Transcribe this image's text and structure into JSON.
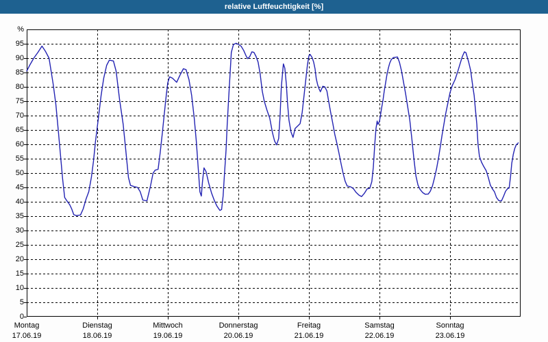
{
  "window": {
    "title": "relative Luftfeuchtigkeit [%]"
  },
  "colors": {
    "titlebar": "#1e6190",
    "window_border": "#1e6190",
    "plot_background": "#ffffff",
    "grid": "#000000",
    "line": "#2222b2",
    "label_text": "#000000"
  },
  "chart_data": {
    "type": "line",
    "title": "relative Luftfeuchtigkeit [%]",
    "ylabel": "%",
    "y_unit": "%",
    "ylim": [
      0,
      100
    ],
    "ytick_step": 5,
    "ytick_labels": [
      "0",
      "5",
      "10",
      "15",
      "20",
      "25",
      "30",
      "35",
      "40",
      "45",
      "50",
      "55",
      "60",
      "65",
      "70",
      "75",
      "80",
      "85",
      "90",
      "95"
    ],
    "grid": "dashed",
    "legend": "none",
    "x_span_hours": 168,
    "days": [
      {
        "name": "Montag",
        "date": "17.06.19"
      },
      {
        "name": "Dienstag",
        "date": "18.06.19"
      },
      {
        "name": "Mittwoch",
        "date": "19.06.19"
      },
      {
        "name": "Donnerstag",
        "date": "20.06.19"
      },
      {
        "name": "Freitag",
        "date": "21.06.19"
      },
      {
        "name": "Samstag",
        "date": "22.06.19"
      },
      {
        "name": "Sonntag",
        "date": "23.06.19"
      }
    ],
    "series": [
      {
        "name": "relative Luftfeuchtigkeit",
        "unit": "%",
        "color": "#2222b2",
        "points": [
          [
            0,
            85.5
          ],
          [
            1,
            87.5
          ],
          [
            2.4,
            90
          ],
          [
            3.8,
            92
          ],
          [
            5.2,
            94.2
          ],
          [
            6.4,
            92.3
          ],
          [
            7.6,
            90
          ],
          [
            9,
            81
          ],
          [
            9.9,
            74
          ],
          [
            10.8,
            64
          ],
          [
            11.5,
            56
          ],
          [
            12.2,
            48
          ],
          [
            12.9,
            41.5
          ],
          [
            13.6,
            40.4
          ],
          [
            14.6,
            39
          ],
          [
            15.3,
            37.5
          ],
          [
            16,
            35.5
          ],
          [
            16.9,
            35.2
          ],
          [
            18.3,
            35.4
          ],
          [
            19.2,
            37.5
          ],
          [
            20.2,
            41
          ],
          [
            21.1,
            43.5
          ],
          [
            22,
            48.5
          ],
          [
            22.7,
            54
          ],
          [
            23.4,
            61
          ],
          [
            24,
            66
          ],
          [
            24.6,
            71
          ],
          [
            25.3,
            77
          ],
          [
            26.2,
            83
          ],
          [
            27.2,
            87.5
          ],
          [
            28.1,
            89.3
          ],
          [
            29.5,
            89
          ],
          [
            30.4,
            85.5
          ],
          [
            31.6,
            75.5
          ],
          [
            32.8,
            67
          ],
          [
            33.7,
            58
          ],
          [
            34.6,
            48.5
          ],
          [
            35.3,
            45.7
          ],
          [
            36.5,
            45.3
          ],
          [
            37.7,
            45
          ],
          [
            38.6,
            43.5
          ],
          [
            39.5,
            40.6
          ],
          [
            40.9,
            40.3
          ],
          [
            42.1,
            45.5
          ],
          [
            43,
            50
          ],
          [
            43.7,
            51
          ],
          [
            44.7,
            51.3
          ],
          [
            45.4,
            57
          ],
          [
            46.1,
            63.5
          ],
          [
            46.8,
            70.5
          ],
          [
            47.5,
            77.5
          ],
          [
            48,
            81.5
          ],
          [
            48.6,
            83.5
          ],
          [
            49.6,
            83
          ],
          [
            51,
            81.6
          ],
          [
            52.1,
            84
          ],
          [
            53.3,
            86.3
          ],
          [
            54.2,
            86
          ],
          [
            55.2,
            82.5
          ],
          [
            56.1,
            77
          ],
          [
            57,
            69
          ],
          [
            57.7,
            61
          ],
          [
            58.4,
            51
          ],
          [
            58.9,
            43.5
          ],
          [
            59.4,
            42
          ],
          [
            59.8,
            47
          ],
          [
            60.3,
            51.8
          ],
          [
            61,
            50.5
          ],
          [
            61.9,
            46.5
          ],
          [
            62.9,
            43
          ],
          [
            63.8,
            40.5
          ],
          [
            64.7,
            38.5
          ],
          [
            65.7,
            37
          ],
          [
            66.3,
            37.3
          ],
          [
            66.8,
            42
          ],
          [
            67.3,
            50
          ],
          [
            67.8,
            58
          ],
          [
            68.2,
            67
          ],
          [
            68.7,
            76
          ],
          [
            69.2,
            85
          ],
          [
            69.6,
            92
          ],
          [
            70.3,
            94.7
          ],
          [
            71.2,
            95.2
          ],
          [
            72,
            94.8
          ],
          [
            72.9,
            94.2
          ],
          [
            73.8,
            92.7
          ],
          [
            74.7,
            90.6
          ],
          [
            75.2,
            89.8
          ],
          [
            75.9,
            90.6
          ],
          [
            76.6,
            92.2
          ],
          [
            77.3,
            92
          ],
          [
            78,
            90.6
          ],
          [
            78.7,
            88.6
          ],
          [
            79.4,
            84.5
          ],
          [
            80.1,
            78.6
          ],
          [
            80.8,
            75
          ],
          [
            81.7,
            72
          ],
          [
            82.7,
            69
          ],
          [
            83.6,
            64
          ],
          [
            84.3,
            61.2
          ],
          [
            85,
            59.8
          ],
          [
            85.7,
            62
          ],
          [
            86.2,
            70
          ],
          [
            86.6,
            80
          ],
          [
            87.3,
            88
          ],
          [
            87.8,
            86.5
          ],
          [
            88.3,
            81
          ],
          [
            88.7,
            74.5
          ],
          [
            89.2,
            68.5
          ],
          [
            89.9,
            64.3
          ],
          [
            90.6,
            62.4
          ],
          [
            91.3,
            65.5
          ],
          [
            92.2,
            66.4
          ],
          [
            93,
            67.2
          ],
          [
            93.7,
            71
          ],
          [
            94.4,
            77.5
          ],
          [
            95.1,
            84
          ],
          [
            95.5,
            87.8
          ],
          [
            96,
            90.8
          ],
          [
            96.4,
            91.3
          ],
          [
            97.1,
            90.2
          ],
          [
            97.6,
            88.6
          ],
          [
            98.1,
            86.2
          ],
          [
            98.5,
            82.8
          ],
          [
            99,
            80.6
          ],
          [
            99.5,
            79.2
          ],
          [
            99.9,
            78.3
          ],
          [
            100.7,
            80.2
          ],
          [
            101.4,
            80
          ],
          [
            102.1,
            78.6
          ],
          [
            102.7,
            75
          ],
          [
            103.4,
            71
          ],
          [
            104.1,
            67.3
          ],
          [
            104.8,
            63.4
          ],
          [
            105.5,
            60.3
          ],
          [
            106.2,
            57
          ],
          [
            106.9,
            53.4
          ],
          [
            107.6,
            50
          ],
          [
            108.3,
            47.2
          ],
          [
            109,
            45.5
          ],
          [
            110.2,
            45.2
          ],
          [
            111.1,
            44.6
          ],
          [
            112,
            43.3
          ],
          [
            113,
            42.3
          ],
          [
            113.9,
            41.8
          ],
          [
            114.9,
            43
          ],
          [
            115.8,
            44.5
          ],
          [
            116.7,
            44.7
          ],
          [
            117.4,
            47
          ],
          [
            117.9,
            52
          ],
          [
            118.4,
            60
          ],
          [
            118.8,
            65.5
          ],
          [
            119.2,
            68.1
          ],
          [
            119.5,
            66.9
          ],
          [
            120,
            68
          ],
          [
            120.7,
            72.5
          ],
          [
            121.2,
            75.5
          ],
          [
            121.6,
            78.5
          ],
          [
            122.1,
            81.5
          ],
          [
            122.5,
            84
          ],
          [
            123,
            86.5
          ],
          [
            123.5,
            88.3
          ],
          [
            124,
            89.5
          ],
          [
            124.7,
            90.2
          ],
          [
            126.1,
            90.4
          ],
          [
            126.8,
            88.5
          ],
          [
            127.5,
            85.5
          ],
          [
            128.2,
            81.5
          ],
          [
            128.9,
            77.5
          ],
          [
            129.6,
            73
          ],
          [
            130.3,
            68.5
          ],
          [
            131,
            62
          ],
          [
            131.7,
            55
          ],
          [
            132.4,
            49
          ],
          [
            133.1,
            45.8
          ],
          [
            133.8,
            44.3
          ],
          [
            134.7,
            43.2
          ],
          [
            135.6,
            42.6
          ],
          [
            136.6,
            42.7
          ],
          [
            137.3,
            43.7
          ],
          [
            138,
            45.5
          ],
          [
            138.7,
            48.3
          ],
          [
            139.4,
            51.5
          ],
          [
            140.1,
            55.4
          ],
          [
            140.8,
            60
          ],
          [
            141.3,
            63.3
          ],
          [
            142,
            67.5
          ],
          [
            142.4,
            70
          ],
          [
            143.1,
            73.5
          ],
          [
            144,
            78
          ],
          [
            144.7,
            80.3
          ],
          [
            145.7,
            82.5
          ],
          [
            146.6,
            85.3
          ],
          [
            147.5,
            88.3
          ],
          [
            148.2,
            90.6
          ],
          [
            148.9,
            92.2
          ],
          [
            149.4,
            91.9
          ],
          [
            150.3,
            88.8
          ],
          [
            151,
            85.8
          ],
          [
            151.7,
            80.5
          ],
          [
            152.2,
            77
          ],
          [
            152.6,
            72.5
          ],
          [
            153.1,
            67
          ],
          [
            153.5,
            60
          ],
          [
            154,
            55.8
          ],
          [
            154.7,
            53.8
          ],
          [
            155.4,
            52.4
          ],
          [
            156.3,
            50.8
          ],
          [
            157,
            48.5
          ],
          [
            157.7,
            45.8
          ],
          [
            158.4,
            44.5
          ],
          [
            159.1,
            43.5
          ],
          [
            159.8,
            41.5
          ],
          [
            160.6,
            40.4
          ],
          [
            161.5,
            40.3
          ],
          [
            162.2,
            41.9
          ],
          [
            162.9,
            43.7
          ],
          [
            163.6,
            44.6
          ],
          [
            164.1,
            44.8
          ],
          [
            164.6,
            49
          ],
          [
            165,
            53.4
          ],
          [
            165.5,
            56.5
          ],
          [
            166,
            58.5
          ],
          [
            166.5,
            59.8
          ],
          [
            167.2,
            60.5
          ]
        ]
      }
    ]
  }
}
